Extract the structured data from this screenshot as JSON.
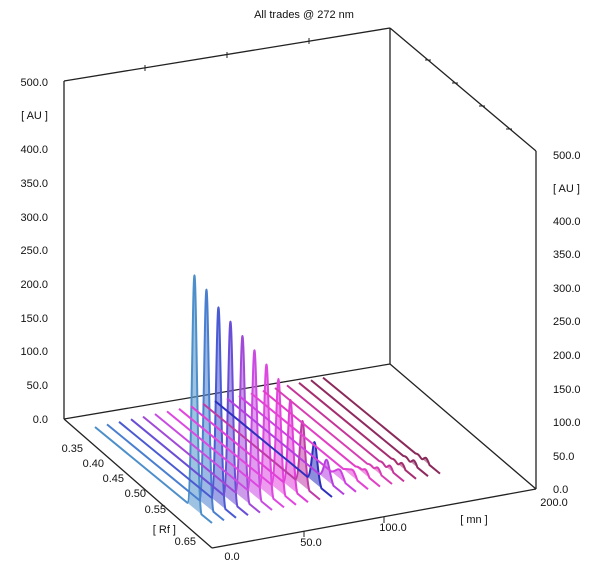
{
  "chart_data": {
    "type": "area",
    "subtype": "3d-waterfall",
    "title": "All trades @ 272 nm",
    "left_axis": {
      "unit_label": "[ AU ]",
      "ticks": [
        "0.0",
        "50.0",
        "100.0",
        "150.0",
        "200.0",
        "250.0",
        "300.0",
        "350.0",
        "400.0",
        "500.0"
      ],
      "ylim": [
        0,
        500
      ]
    },
    "right_axis": {
      "unit_label": "[ AU ]",
      "ticks": [
        "0.0",
        "50.0",
        "100.0",
        "150.0",
        "200.0",
        "250.0",
        "300.0",
        "350.0",
        "400.0",
        "500.0"
      ],
      "ylim": [
        0,
        500
      ]
    },
    "rf_axis": {
      "label": "[ Rf ]",
      "ticks": [
        "0.35",
        "0.40",
        "0.45",
        "0.50",
        "0.55",
        "0.65"
      ]
    },
    "time_axis": {
      "label": "[ mn ]",
      "ticks": [
        "0.0",
        "50.0",
        "100.0",
        "200.0"
      ]
    },
    "series": [
      {
        "rf": 0.36,
        "peak_au": 0,
        "color": "#8a2a5a"
      },
      {
        "rf": 0.39,
        "peak_au": 0,
        "color": "#8e2a60"
      },
      {
        "rf": 0.42,
        "peak_au": 0,
        "color": "#a52d70"
      },
      {
        "rf": 0.45,
        "peak_au": 0,
        "color": "#c6359a"
      },
      {
        "rf": 0.48,
        "peak_au": 2,
        "color": "#d83fb4"
      },
      {
        "rf": 0.51,
        "peak_au": 4,
        "color": "#e23fc6"
      },
      {
        "rf": 0.54,
        "peak_au": 8,
        "color": "#e443d4"
      },
      {
        "rf": 0.57,
        "peak_au": 12,
        "color": "#d040e0"
      },
      {
        "rf": 0.6,
        "peak_au": 30,
        "color": "#b53ee0"
      },
      {
        "rf": 0.63,
        "peak_au": 60,
        "color": "#2e2fbe"
      },
      {
        "rf": 0.66,
        "peak_au": 95,
        "color": "#c03aa8"
      },
      {
        "rf": 0.69,
        "peak_au": 130,
        "color": "#e040d8"
      },
      {
        "rf": 0.72,
        "peak_au": 165,
        "color": "#e346de"
      },
      {
        "rf": 0.75,
        "peak_au": 190,
        "color": "#dd48e0"
      },
      {
        "rf": 0.78,
        "peak_au": 215,
        "color": "#c94be2"
      },
      {
        "rf": 0.81,
        "peak_au": 240,
        "color": "#a24ad8"
      },
      {
        "rf": 0.84,
        "peak_au": 265,
        "color": "#6a4fd6"
      },
      {
        "rf": 0.87,
        "peak_au": 290,
        "color": "#4a5ad2"
      },
      {
        "rf": 0.9,
        "peak_au": 320,
        "color": "#4a7fd0"
      },
      {
        "rf": 0.93,
        "peak_au": 345,
        "color": "#4d8fca"
      }
    ],
    "grid": false,
    "legend": "none"
  }
}
